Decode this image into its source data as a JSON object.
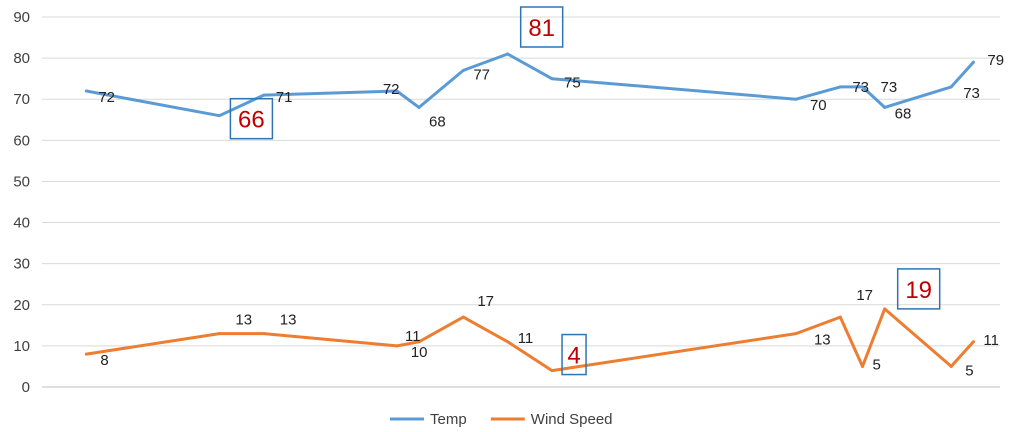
{
  "chart_data": {
    "type": "line",
    "x": [
      1,
      4,
      5,
      8,
      8.5,
      9.5,
      10.5,
      11.5,
      17,
      18,
      18.5,
      19,
      20.5,
      21
    ],
    "series": [
      {
        "name": "Temp",
        "color": "#5B9BD5",
        "values": [
          72,
          66,
          71,
          72,
          68,
          77,
          81,
          75,
          70,
          73,
          73,
          68,
          73,
          79
        ],
        "labels": [
          "72",
          "66",
          "71",
          "72",
          "68",
          "77",
          "81",
          "75",
          "70",
          "73",
          "73",
          "68",
          "73",
          "79"
        ]
      },
      {
        "name": "Wind Speed",
        "color": "#ED7D31",
        "values": [
          8,
          13,
          13,
          10,
          11,
          17,
          11,
          4,
          13,
          17,
          5,
          19,
          5,
          11
        ],
        "labels": [
          "8",
          "13",
          "13",
          "10",
          "11",
          "17",
          "11",
          "4",
          "13",
          "17",
          "5",
          "19",
          "5",
          "11"
        ]
      }
    ],
    "highlights": [
      {
        "series": 0,
        "index": 1,
        "value": "66"
      },
      {
        "series": 0,
        "index": 6,
        "value": "81"
      },
      {
        "series": 1,
        "index": 7,
        "value": "4"
      },
      {
        "series": 1,
        "index": 11,
        "value": "19"
      }
    ],
    "highlight_color": "#C00000",
    "highlight_box_color": "#2E75B6",
    "ylim": [
      0,
      90
    ],
    "yticks": [
      0,
      10,
      20,
      30,
      40,
      50,
      60,
      70,
      80,
      90
    ],
    "grid": true,
    "legend": "bottom"
  }
}
